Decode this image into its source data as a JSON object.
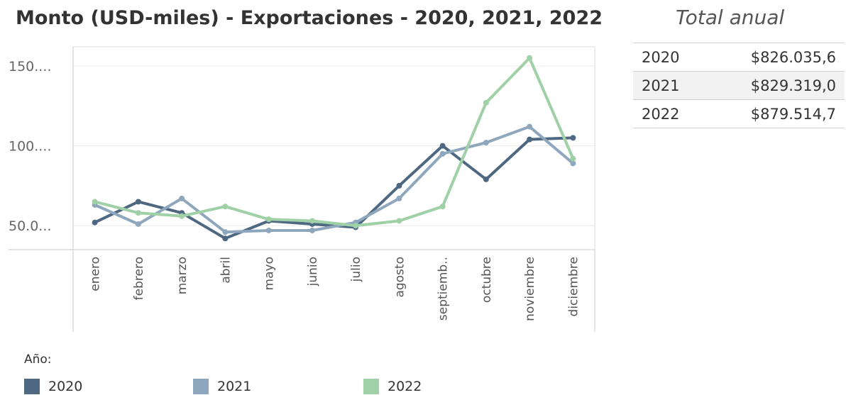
{
  "title": "Monto (USD-miles) - Exportaciones - 2020, 2021, 2022",
  "side_title": "Total anual",
  "totals": [
    {
      "year": "2020",
      "amount": "$826.035,6"
    },
    {
      "year": "2021",
      "amount": "$829.319,0"
    },
    {
      "year": "2022",
      "amount": "$879.514,7"
    }
  ],
  "legend_title": "Año:",
  "colors": {
    "2020": "#4f6882",
    "2021": "#8ea7bd",
    "2022": "#9fd0a6"
  },
  "chart_data": {
    "type": "line",
    "title": "Monto (USD-miles) - Exportaciones - 2020, 2021, 2022",
    "categories": [
      "enero",
      "febrero",
      "marzo",
      "abril",
      "mayo",
      "junio",
      "julio",
      "agosto",
      "septiemb..",
      "octubre",
      "noviembre",
      "diciembre"
    ],
    "y_tick_labels": [
      "150....",
      "100....",
      "50.0..."
    ],
    "y_ticks": [
      150,
      100,
      50
    ],
    "ylim": [
      35,
      162
    ],
    "grid": true,
    "legend_position": "bottom",
    "series": [
      {
        "name": "2020",
        "values": [
          52,
          65,
          58,
          42,
          53,
          51,
          49,
          75,
          100,
          79,
          104,
          105
        ]
      },
      {
        "name": "2021",
        "values": [
          63,
          51,
          67,
          46,
          47,
          47,
          52,
          67,
          95,
          102,
          112,
          89
        ]
      },
      {
        "name": "2022",
        "values": [
          65,
          58,
          56,
          62,
          54,
          53,
          50,
          53,
          62,
          127,
          155,
          92
        ]
      }
    ]
  }
}
